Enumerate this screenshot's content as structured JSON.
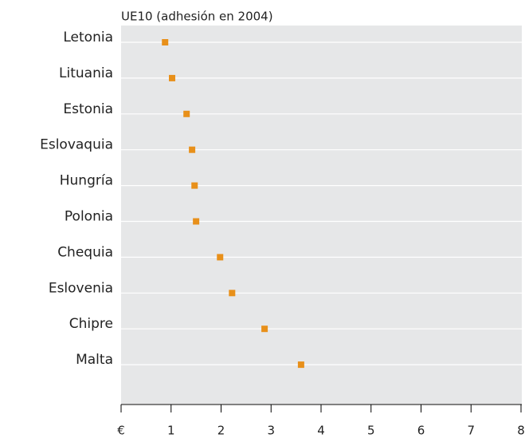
{
  "chart_data": {
    "type": "dot",
    "title": "UE10 (adhesión en 2004)",
    "categories": [
      "Letonia",
      "Lituania",
      "Estonia",
      "Eslovaquia",
      "Hungría",
      "Polonia",
      "Chequia",
      "Eslovenia",
      "Chipre",
      "Malta"
    ],
    "values": [
      0.88,
      1.02,
      1.31,
      1.42,
      1.47,
      1.5,
      1.98,
      2.22,
      2.87,
      3.6
    ],
    "color": "#e8901a",
    "xlim": [
      0,
      8
    ],
    "xticks": [
      {
        "value": 0,
        "label": "€"
      },
      1,
      2,
      3,
      4,
      5,
      6,
      7,
      8
    ],
    "grid": true
  }
}
